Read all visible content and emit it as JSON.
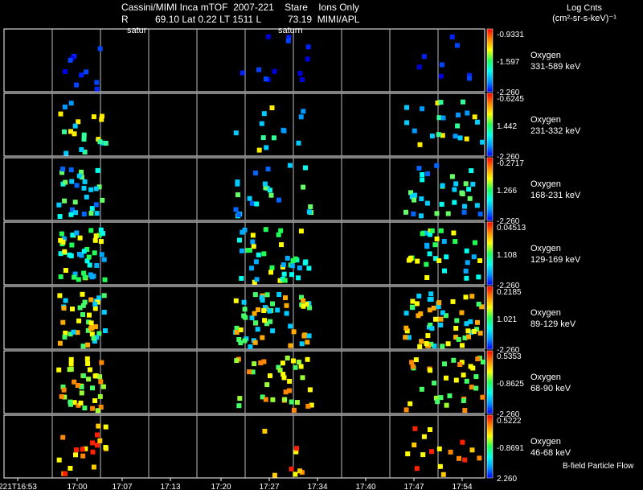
{
  "header": {
    "line1": "Cassini/MIMI Inca mTOF  2007-221    Stare    Ions Only",
    "line2": "R          69.10 Lat 0.22 LT 1511 L          73.19  MIMI/APL",
    "marker_left": "satur",
    "marker_mid": "saturn",
    "units_line1": "Log Cnts",
    "units_line2": "(cm²-sr-s-keV)⁻¹"
  },
  "footer_note": "B-field Particle Flow",
  "x_ticks": [
    "221T16:53",
    "17:00",
    "17:07",
    "17:13",
    "17:20",
    "17:27",
    "17:34",
    "17:40",
    "17:47",
    "17:54"
  ],
  "colorbar_colors": [
    "#0000ff",
    "#0099ff",
    "#00ffee",
    "#22ff55",
    "#ffff00",
    "#ff8800",
    "#ff0000"
  ],
  "chart_data": {
    "type": "heatmap",
    "title": "Cassini/MIMI Inca mTOF  2007-221    Stare    Ions Only",
    "x_tick_labels": [
      "221T16:53",
      "17:00",
      "17:07",
      "17:13",
      "17:20",
      "17:27",
      "17:34",
      "17:40",
      "17:47",
      "17:54"
    ],
    "colorbar_unit": "Log Cnts (cm²-sr-s-keV)⁻¹",
    "panels": [
      {
        "species": "Oxygen",
        "energy": "331-589 keV",
        "cbar_top": "-0.9331",
        "cbar_mid": "-1.597",
        "cbar_bot": "-2.260"
      },
      {
        "species": "Oxygen",
        "energy": "231-332 keV",
        "cbar_top": "-0.6245",
        "cbar_mid": "1.442",
        "cbar_bot": "-2.260"
      },
      {
        "species": "Oxygen",
        "energy": "168-231 keV",
        "cbar_top": "-0.2717",
        "cbar_mid": "1.266",
        "cbar_bot": "-2.260"
      },
      {
        "species": "Oxygen",
        "energy": "129-169 keV",
        "cbar_top": "0.04513",
        "cbar_mid": "1.108",
        "cbar_bot": "-2.260"
      },
      {
        "species": "Oxygen",
        "energy": "89-129 keV",
        "cbar_top": "0.2185",
        "cbar_mid": "1.021",
        "cbar_bot": "-2.260"
      },
      {
        "species": "Oxygen",
        "energy": "68-90 keV",
        "cbar_top": "0.5353",
        "cbar_mid": "-0.8625",
        "cbar_bot": "-2.260"
      },
      {
        "species": "Oxygen",
        "energy": "46-68 keV",
        "cbar_top": "0.5222",
        "cbar_mid": "-0.8691",
        "cbar_bot": "2.260"
      }
    ]
  }
}
